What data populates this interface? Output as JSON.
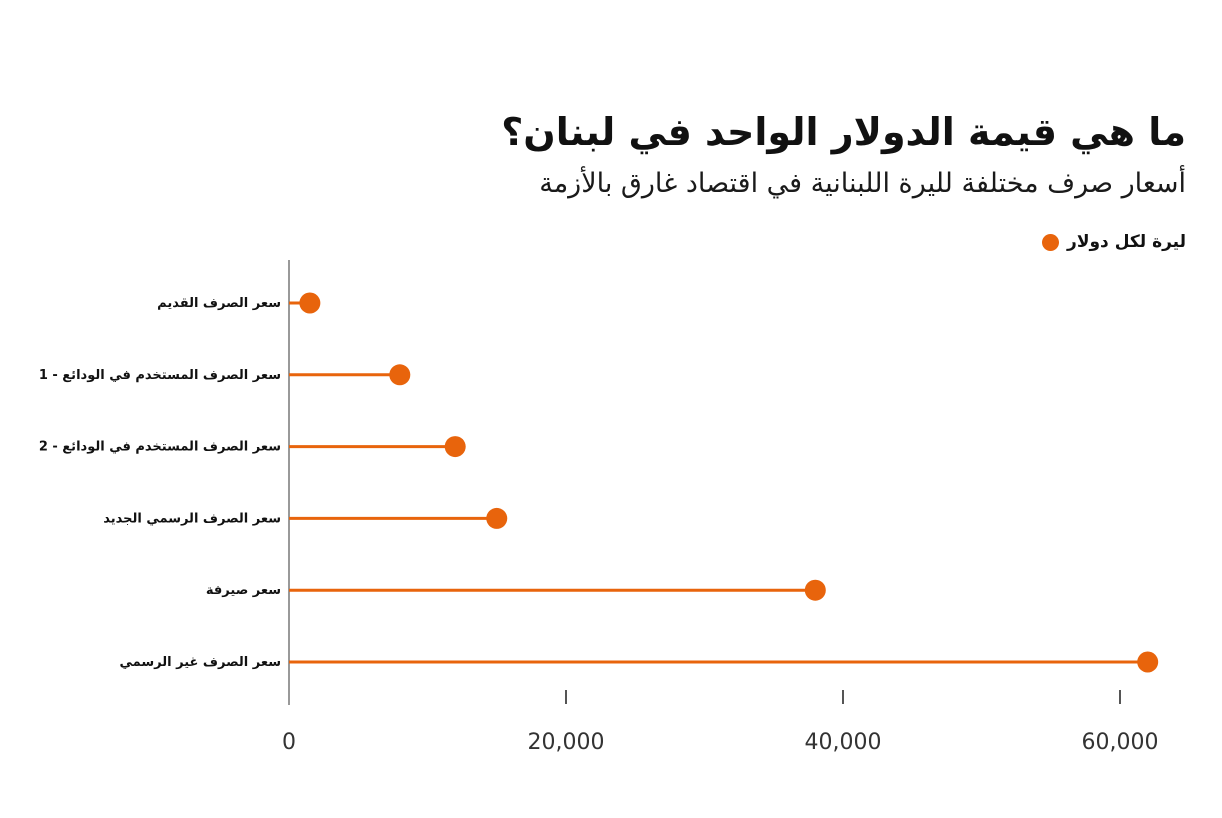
{
  "header": {
    "title": "ما هي قيمة الدولار الواحد في لبنان؟",
    "subtitle": "أسعار صرف مختلفة لليرة اللبنانية في اقتصاد غارق بالأزمة"
  },
  "colors": {
    "accent": "#e8640c",
    "axis": "#999999"
  },
  "chart_data": {
    "type": "lollipop-bar",
    "orientation": "horizontal",
    "categories": [
      "سعر الصرف القديم",
      "سعر الصرف المستخدم في الودائع - 1",
      "سعر الصرف المستخدم في الودائع - 2",
      "سعر الصرف الرسمي الجديد",
      "سعر صيرفة",
      "سعر الصرف غير الرسمي"
    ],
    "series": [
      {
        "name": "ليرة لكل دولار",
        "values": [
          1507.5,
          8000,
          12000,
          15000,
          38000,
          62000
        ]
      }
    ],
    "xlim": [
      0,
      62000
    ],
    "xticks": [
      0,
      20000,
      40000,
      60000
    ],
    "xtick_labels": [
      "0",
      "20,000",
      "40,000",
      "60,000"
    ],
    "legend_position": "top-right",
    "grid": false
  }
}
